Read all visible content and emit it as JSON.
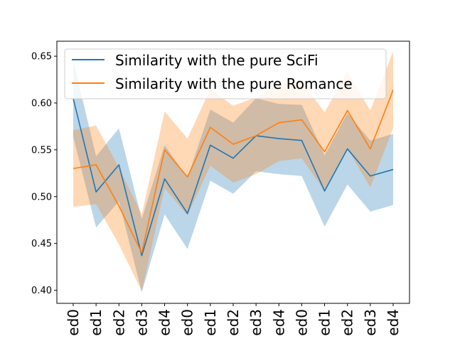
{
  "chart_data": {
    "type": "line",
    "title": "",
    "xlabel": "",
    "ylabel": "",
    "categories": [
      "ed0",
      "ed1",
      "ed2",
      "ed3",
      "ed4",
      "ed0",
      "ed1",
      "ed2",
      "ed3",
      "ed4",
      "ed0",
      "ed1",
      "ed2",
      "ed3",
      "ed4"
    ],
    "ylim": [
      0.386,
      0.666
    ],
    "yticks": [
      "0.40",
      "0.45",
      "0.50",
      "0.55",
      "0.60",
      "0.65"
    ],
    "ytick_values": [
      0.4,
      0.45,
      0.5,
      0.55,
      0.6,
      0.65
    ],
    "legend_position": "top-left",
    "series": [
      {
        "name": "Similarity with the pure SciFi",
        "color": "#1f77b4",
        "band_color": "#1f77b4",
        "values": [
          0.605,
          0.505,
          0.534,
          0.437,
          0.519,
          0.482,
          0.555,
          0.541,
          0.565,
          0.562,
          0.56,
          0.506,
          0.551,
          0.522,
          0.529
        ],
        "upper": [
          0.646,
          0.543,
          0.573,
          0.476,
          0.555,
          0.52,
          0.593,
          0.579,
          0.605,
          0.599,
          0.598,
          0.544,
          0.589,
          0.56,
          0.567
        ],
        "lower": [
          0.564,
          0.467,
          0.495,
          0.398,
          0.481,
          0.444,
          0.517,
          0.503,
          0.527,
          0.524,
          0.522,
          0.468,
          0.513,
          0.484,
          0.491
        ]
      },
      {
        "name": "Similarity with the pure Romance",
        "color": "#ff7f0e",
        "band_color": "#ff7f0e",
        "values": [
          0.53,
          0.534,
          0.49,
          0.44,
          0.55,
          0.521,
          0.574,
          0.556,
          0.565,
          0.579,
          0.582,
          0.548,
          0.592,
          0.551,
          0.614
        ],
        "upper": [
          0.571,
          0.576,
          0.531,
          0.481,
          0.591,
          0.562,
          0.615,
          0.597,
          0.606,
          0.62,
          0.623,
          0.59,
          0.633,
          0.592,
          0.655
        ],
        "lower": [
          0.489,
          0.492,
          0.449,
          0.399,
          0.509,
          0.48,
          0.533,
          0.515,
          0.524,
          0.538,
          0.541,
          0.506,
          0.551,
          0.51,
          0.573
        ]
      }
    ]
  }
}
